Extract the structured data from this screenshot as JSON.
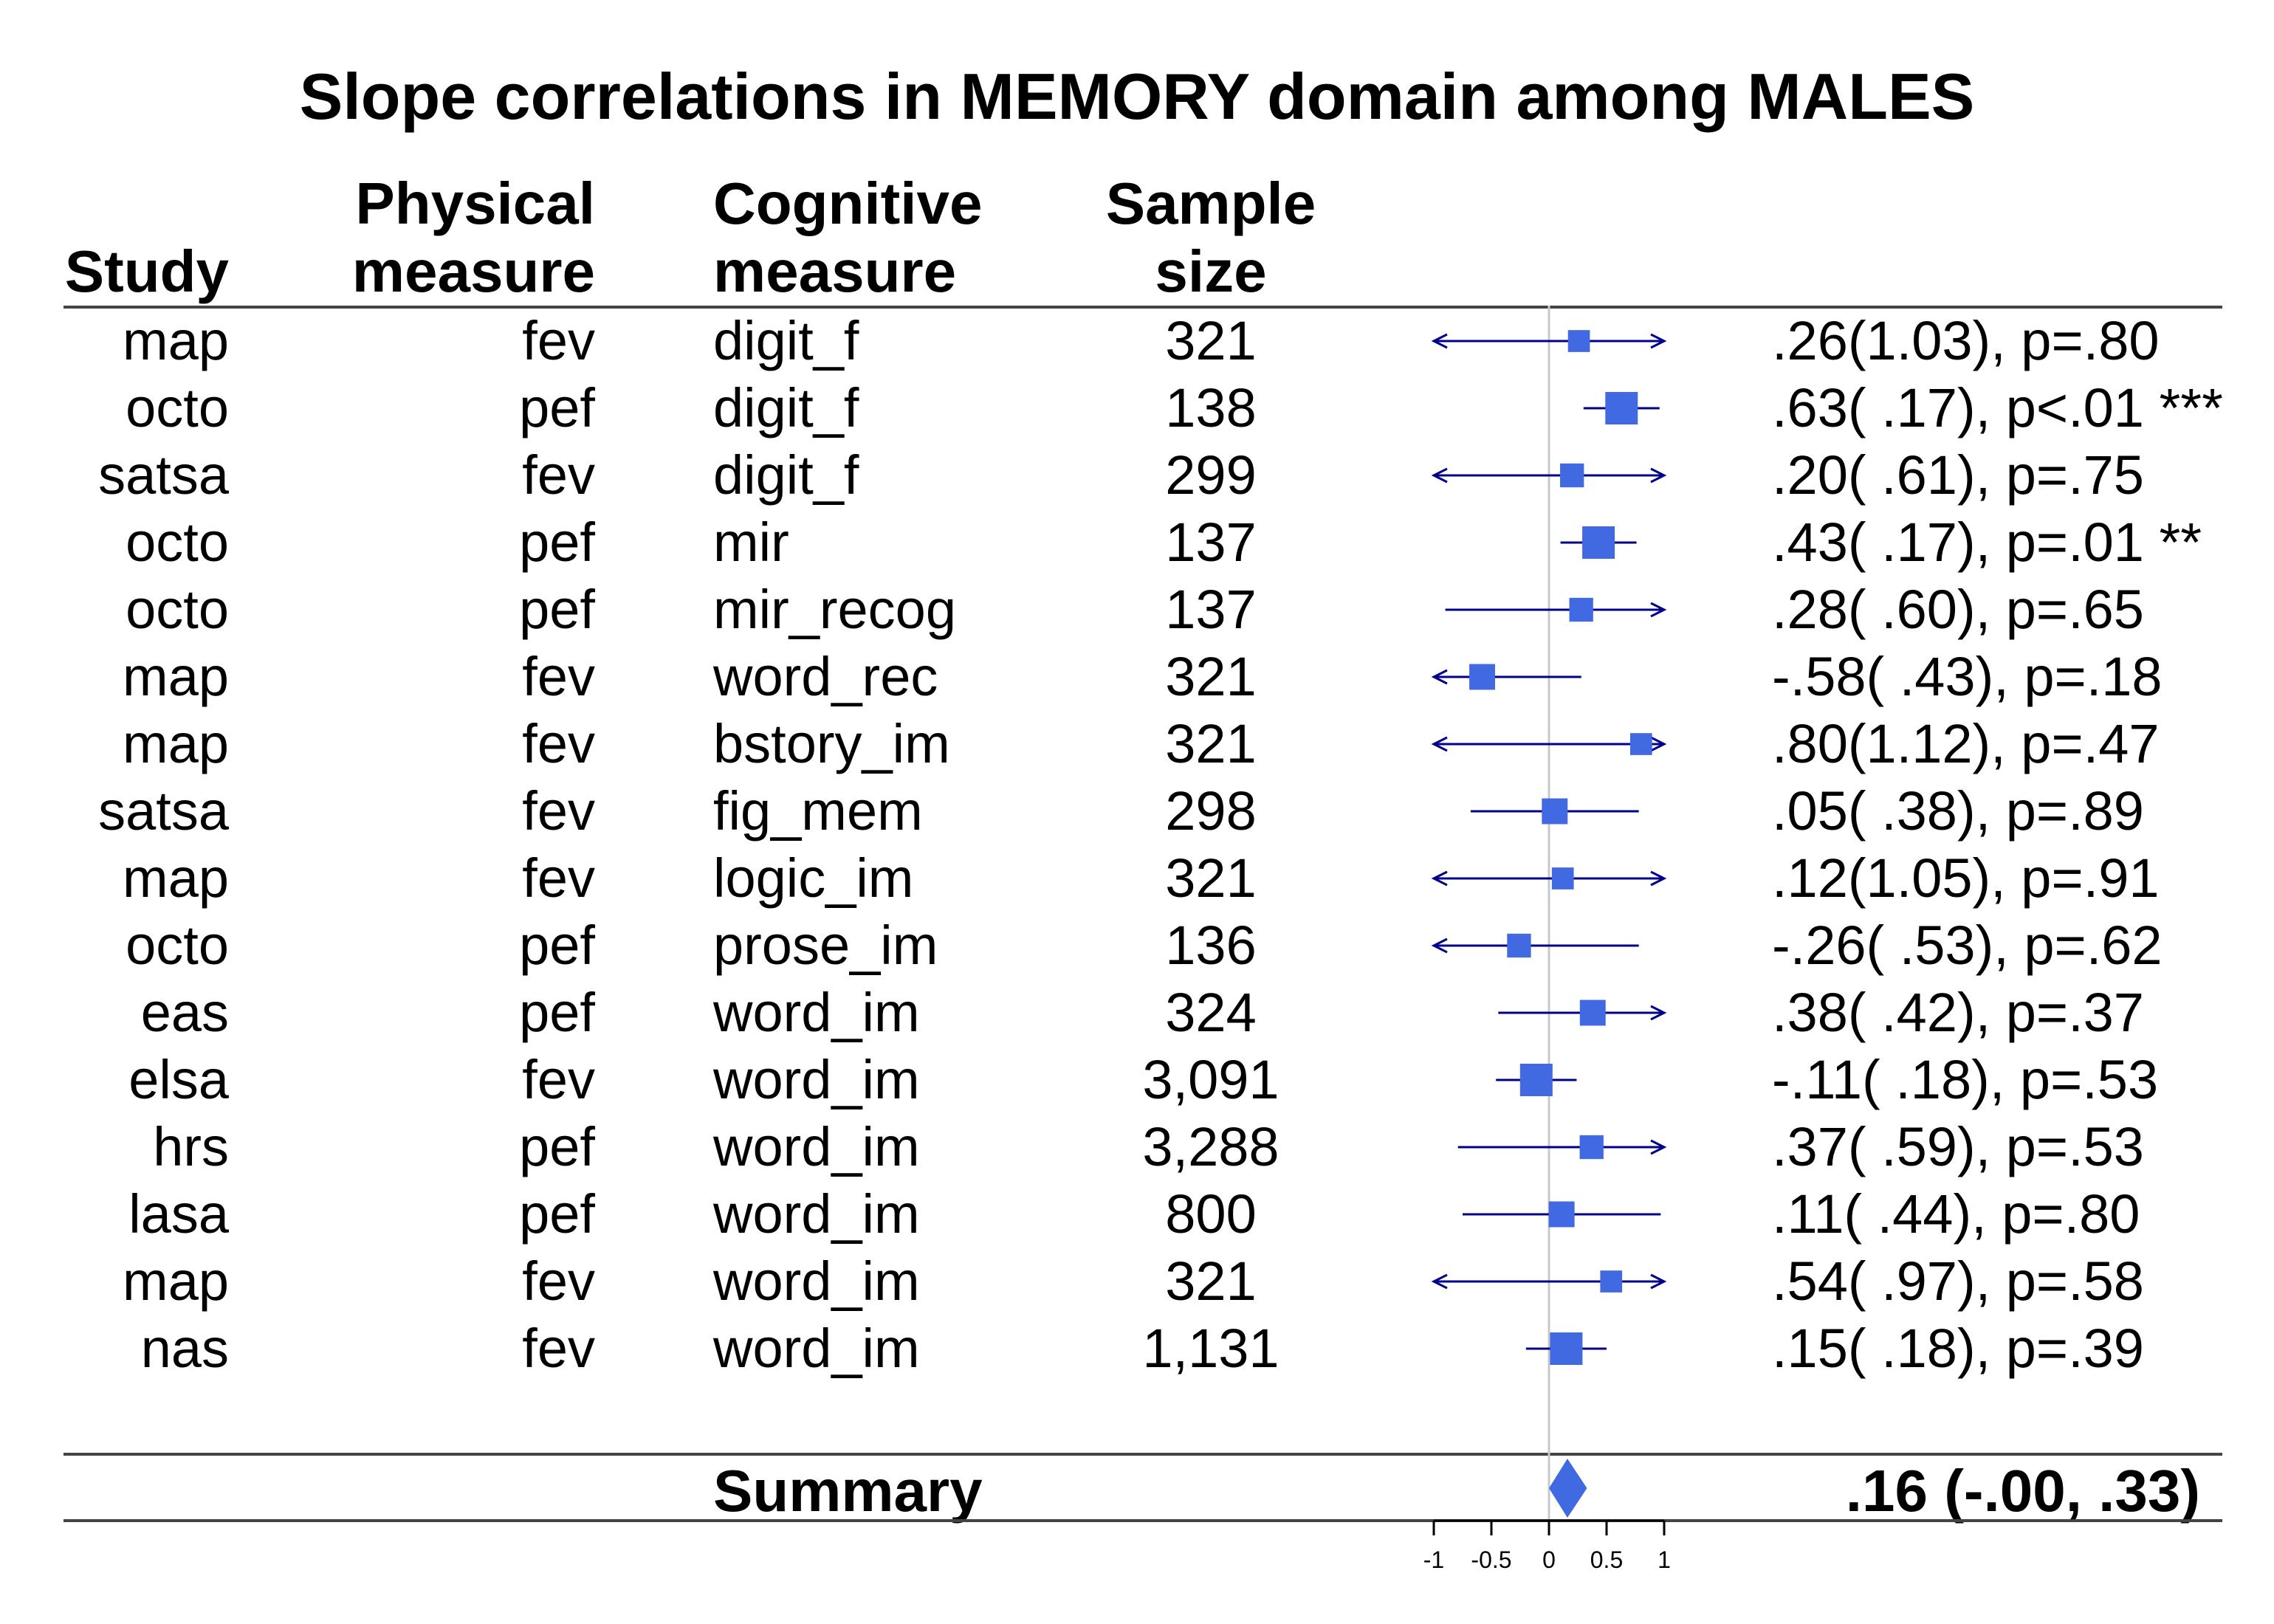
{
  "title": "Slope correlations in MEMORY domain among MALES",
  "headers": {
    "study": [
      "Study"
    ],
    "physical": [
      "Physical",
      "measure"
    ],
    "cognitive": [
      "Cognitive",
      "measure"
    ],
    "sample": [
      "Sample",
      "size"
    ]
  },
  "colors": {
    "marker": "#4169E1",
    "ci_line": "#00008B",
    "reference_line": "#C8C8C8",
    "rule": "#444444"
  },
  "chart_data": {
    "type": "forest",
    "xlim": [
      -1,
      1
    ],
    "xticks": [
      -1,
      -0.5,
      0,
      0.5,
      1
    ],
    "xtick_labels": [
      "-1",
      "-0.5",
      "0",
      "0.5",
      "1"
    ],
    "reference_line": 0,
    "rows": [
      {
        "study": "map",
        "physical": "fev",
        "cognitive": "digit_f",
        "n": "321",
        "estimate": 0.26,
        "lo": -1.0,
        "hi": 1.0,
        "arrow_lo": true,
        "arrow_hi": true,
        "weight": 0.45,
        "label": ".26(1.03), p=.80"
      },
      {
        "study": "octo",
        "physical": "pef",
        "cognitive": "digit_f",
        "n": "138",
        "estimate": 0.63,
        "lo": 0.3,
        "hi": 0.96,
        "arrow_lo": false,
        "arrow_hi": false,
        "weight": 1.0,
        "label": ".63( .17), p<.01 ***"
      },
      {
        "study": "satsa",
        "physical": "fev",
        "cognitive": "digit_f",
        "n": "299",
        "estimate": 0.2,
        "lo": -1.0,
        "hi": 1.0,
        "arrow_lo": true,
        "arrow_hi": true,
        "weight": 0.55,
        "label": ".20( .61), p=.75"
      },
      {
        "study": "octo",
        "physical": "pef",
        "cognitive": "mir",
        "n": "137",
        "estimate": 0.43,
        "lo": 0.1,
        "hi": 0.76,
        "arrow_lo": false,
        "arrow_hi": false,
        "weight": 1.0,
        "label": ".43( .17), p=.01 **"
      },
      {
        "study": "octo",
        "physical": "pef",
        "cognitive": "mir_recog",
        "n": "137",
        "estimate": 0.28,
        "lo": -0.9,
        "hi": 1.0,
        "arrow_lo": false,
        "arrow_hi": true,
        "weight": 0.55,
        "label": ".28( .60), p=.65"
      },
      {
        "study": "map",
        "physical": "fev",
        "cognitive": "word_rec",
        "n": "321",
        "estimate": -0.58,
        "lo": -1.0,
        "hi": 0.28,
        "arrow_lo": true,
        "arrow_hi": false,
        "weight": 0.65,
        "label": "-.58( .43), p=.18"
      },
      {
        "study": "map",
        "physical": "fev",
        "cognitive": "bstory_im",
        "n": "321",
        "estimate": 0.8,
        "lo": -1.0,
        "hi": 1.0,
        "arrow_lo": true,
        "arrow_hi": true,
        "weight": 0.45,
        "label": ".80(1.12), p=.47"
      },
      {
        "study": "satsa",
        "physical": "fev",
        "cognitive": "fig_mem",
        "n": "298",
        "estimate": 0.05,
        "lo": -0.68,
        "hi": 0.78,
        "arrow_lo": false,
        "arrow_hi": false,
        "weight": 0.65,
        "label": ".05( .38), p=.89"
      },
      {
        "study": "map",
        "physical": "fev",
        "cognitive": "logic_im",
        "n": "321",
        "estimate": 0.12,
        "lo": -1.0,
        "hi": 1.0,
        "arrow_lo": true,
        "arrow_hi": true,
        "weight": 0.45,
        "label": ".12(1.05), p=.91"
      },
      {
        "study": "octo",
        "physical": "pef",
        "cognitive": "prose_im",
        "n": "136",
        "estimate": -0.26,
        "lo": -1.0,
        "hi": 0.78,
        "arrow_lo": true,
        "arrow_hi": false,
        "weight": 0.55,
        "label": "-.26( .53), p=.62"
      },
      {
        "study": "eas",
        "physical": "pef",
        "cognitive": "word_im",
        "n": "324",
        "estimate": 0.38,
        "lo": -0.44,
        "hi": 1.0,
        "arrow_lo": false,
        "arrow_hi": true,
        "weight": 0.65,
        "label": ".38( .42), p=.37"
      },
      {
        "study": "elsa",
        "physical": "fev",
        "cognitive": "word_im",
        "n": "3,091",
        "estimate": -0.11,
        "lo": -0.46,
        "hi": 0.24,
        "arrow_lo": false,
        "arrow_hi": false,
        "weight": 1.0,
        "label": "-.11( .18), p=.53"
      },
      {
        "study": "hrs",
        "physical": "pef",
        "cognitive": "word_im",
        "n": "3,288",
        "estimate": 0.37,
        "lo": -0.79,
        "hi": 1.0,
        "arrow_lo": false,
        "arrow_hi": true,
        "weight": 0.55,
        "label": ".37( .59), p=.53"
      },
      {
        "study": "lasa",
        "physical": "pef",
        "cognitive": "word_im",
        "n": "800",
        "estimate": 0.11,
        "lo": -0.75,
        "hi": 0.97,
        "arrow_lo": false,
        "arrow_hi": false,
        "weight": 0.65,
        "label": ".11( .44), p=.80"
      },
      {
        "study": "map",
        "physical": "fev",
        "cognitive": "word_im",
        "n": "321",
        "estimate": 0.54,
        "lo": -1.0,
        "hi": 1.0,
        "arrow_lo": true,
        "arrow_hi": true,
        "weight": 0.45,
        "label": ".54( .97), p=.58"
      },
      {
        "study": "nas",
        "physical": "fev",
        "cognitive": "word_im",
        "n": "1,131",
        "estimate": 0.15,
        "lo": -0.2,
        "hi": 0.5,
        "arrow_lo": false,
        "arrow_hi": false,
        "weight": 1.0,
        "label": ".15( .18), p=.39"
      }
    ],
    "summary": {
      "label": "Summary",
      "estimate": 0.16,
      "lo": -0.0,
      "hi": 0.33,
      "text": ".16 (-.00, .33)"
    }
  }
}
